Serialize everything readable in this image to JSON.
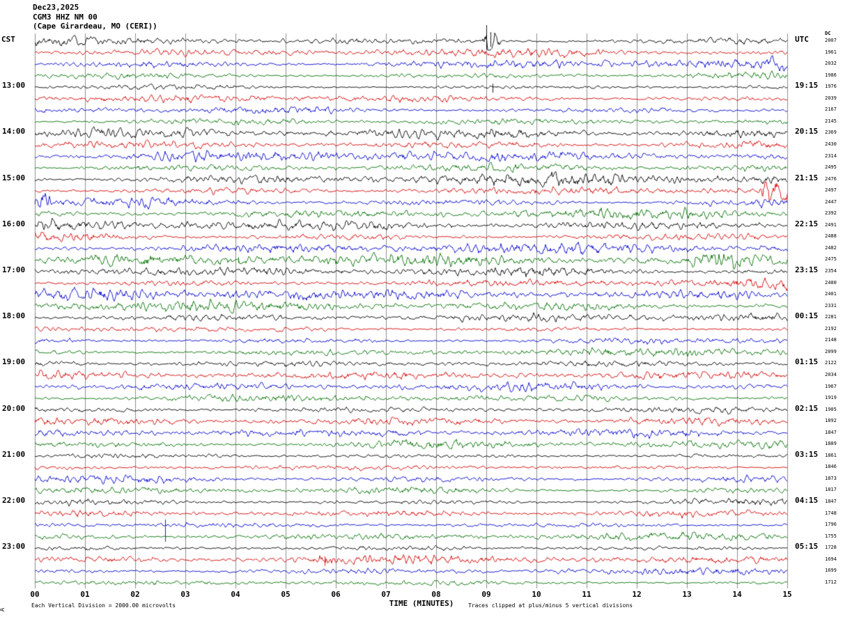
{
  "header": {
    "date": "Dec23,2025",
    "station": "CGM3 HHZ NM 00",
    "location": "(Cape Girardeau, MO (CERI))"
  },
  "axes": {
    "left_tz": "CST",
    "right_tz": "UTC",
    "dc_header": "DC",
    "x_title": "TIME (MINUTES)"
  },
  "footer": {
    "scale_note": "Each Vertical Division = 2000.00 microvolts",
    "clip_note": "Traces clipped at plus/minus 5 vertical divisions",
    "corner_mark": "A"
  },
  "chart_data": {
    "type": "line",
    "title": "CGM3 HHZ NM 00 (Cape Girardeau, MO (CERI)) helicorder, Dec23,2025",
    "xlabel": "TIME (MINUTES)",
    "x_range": [
      0,
      15
    ],
    "x_ticks": [
      "00",
      "01",
      "02",
      "03",
      "04",
      "05",
      "06",
      "07",
      "08",
      "09",
      "10",
      "11",
      "12",
      "13",
      "14",
      "15"
    ],
    "rows": 48,
    "minutes_per_row": 15,
    "row_colors_cycle": [
      "#000000",
      "#d40000",
      "#0000cc",
      "#007100"
    ],
    "grid_color": "#8c8c8c",
    "left_hour_labels": [
      {
        "row": 4,
        "label": "13:00"
      },
      {
        "row": 8,
        "label": "14:00"
      },
      {
        "row": 12,
        "label": "15:00"
      },
      {
        "row": 16,
        "label": "16:00"
      },
      {
        "row": 20,
        "label": "17:00"
      },
      {
        "row": 24,
        "label": "18:00"
      },
      {
        "row": 28,
        "label": "19:00"
      },
      {
        "row": 32,
        "label": "20:00"
      },
      {
        "row": 36,
        "label": "21:00"
      },
      {
        "row": 40,
        "label": "22:00"
      },
      {
        "row": 44,
        "label": "23:00"
      }
    ],
    "right_utc_labels": [
      {
        "row": 4,
        "label": "19:15"
      },
      {
        "row": 8,
        "label": "20:15"
      },
      {
        "row": 12,
        "label": "21:15"
      },
      {
        "row": 16,
        "label": "22:15"
      },
      {
        "row": 20,
        "label": "23:15"
      },
      {
        "row": 24,
        "label": "00:15"
      },
      {
        "row": 28,
        "label": "01:15"
      },
      {
        "row": 32,
        "label": "02:15"
      },
      {
        "row": 36,
        "label": "03:15"
      },
      {
        "row": 40,
        "label": "04:15"
      },
      {
        "row": 44,
        "label": "05:15"
      }
    ],
    "dc_values": [
      2007,
      1961,
      2032,
      1986,
      1976,
      2039,
      2167,
      2145,
      2369,
      2430,
      2314,
      2495,
      2476,
      2497,
      2447,
      2392,
      2491,
      2488,
      2482,
      2475,
      2354,
      2400,
      2401,
      2331,
      2281,
      2192,
      2148,
      2099,
      2122,
      2034,
      1967,
      1919,
      1905,
      1892,
      1847,
      1889,
      1861,
      1846,
      1873,
      1817,
      1847,
      1748,
      1796,
      1755,
      1728,
      1694,
      1699,
      1712
    ],
    "events": [
      {
        "row": 0,
        "type": "burst",
        "t0": 8.9,
        "t1": 9.3,
        "amp": 8
      },
      {
        "row": 0,
        "type": "spike",
        "t": 9.0,
        "up": 23,
        "down": 12
      },
      {
        "row": 0,
        "type": "spike",
        "t": 9.08,
        "up": 13,
        "down": 8
      },
      {
        "row": 4,
        "type": "spike",
        "t": 9.12,
        "up": 5,
        "down": 8
      },
      {
        "row": 13,
        "type": "burst",
        "t0": 14.42,
        "t1": 15.0,
        "amp": 9,
        "plateau": "end"
      },
      {
        "row": 14,
        "type": "burst",
        "t0": 0.0,
        "t1": 0.38,
        "amp": 5,
        "plateau": "start"
      },
      {
        "row": 19,
        "type": "burst",
        "t0": 12.9,
        "t1": 14.35,
        "amp": 3.2
      },
      {
        "row": 19,
        "type": "spike",
        "t": 4.05,
        "up": 4,
        "down": 4
      },
      {
        "row": 42,
        "type": "spike",
        "t": 2.6,
        "up": 8,
        "down": 24
      },
      {
        "row": 45,
        "type": "burst",
        "t0": 5.6,
        "t1": 5.95,
        "amp": 3
      },
      {
        "row": 45,
        "type": "spike",
        "t": 5.78,
        "up": 5,
        "down": 9
      }
    ]
  }
}
